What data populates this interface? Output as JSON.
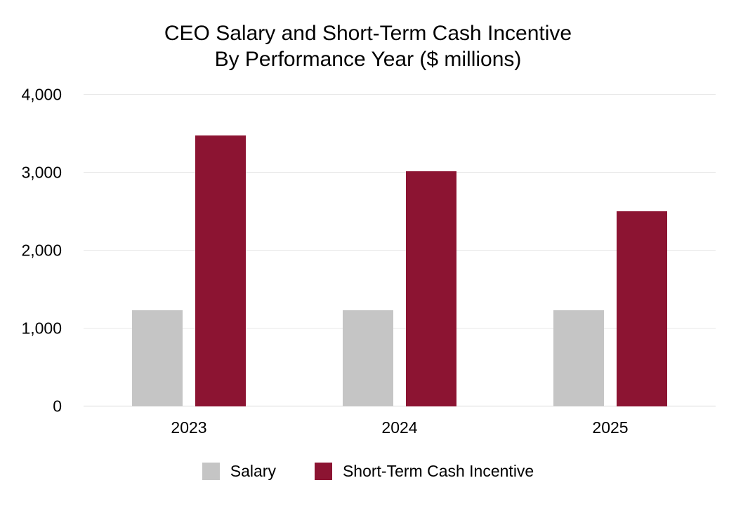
{
  "chart_data": {
    "type": "bar",
    "title": "CEO Salary and Short-Term Cash Incentive By Performance Year ($ millions)",
    "title_lines": [
      "CEO Salary and Short-Term Cash Incentive",
      "By Performance Year ($ millions)"
    ],
    "categories": [
      "2023",
      "2024",
      "2025"
    ],
    "series": [
      {
        "name": "Salary",
        "color": "#C5C5C5",
        "values": [
          1235,
          1235,
          1235
        ]
      },
      {
        "name": "Short-Term Cash Incentive",
        "color": "#8C1432",
        "values": [
          3480,
          3020,
          2505
        ]
      }
    ],
    "xlabel": "",
    "ylabel": "",
    "ylim": [
      0,
      4000
    ],
    "yticks": [
      0,
      1000,
      2000,
      3000,
      4000
    ],
    "ytick_labels": [
      "0",
      "1,000",
      "2,000",
      "3,000",
      "4,000"
    ],
    "grid": "horizontal",
    "gridline_color": "#E8E8E8",
    "baseline_color": "#D9D9D9",
    "background_color": "#FFFFFF",
    "text_color": "#000000",
    "legend_position": "bottom"
  }
}
